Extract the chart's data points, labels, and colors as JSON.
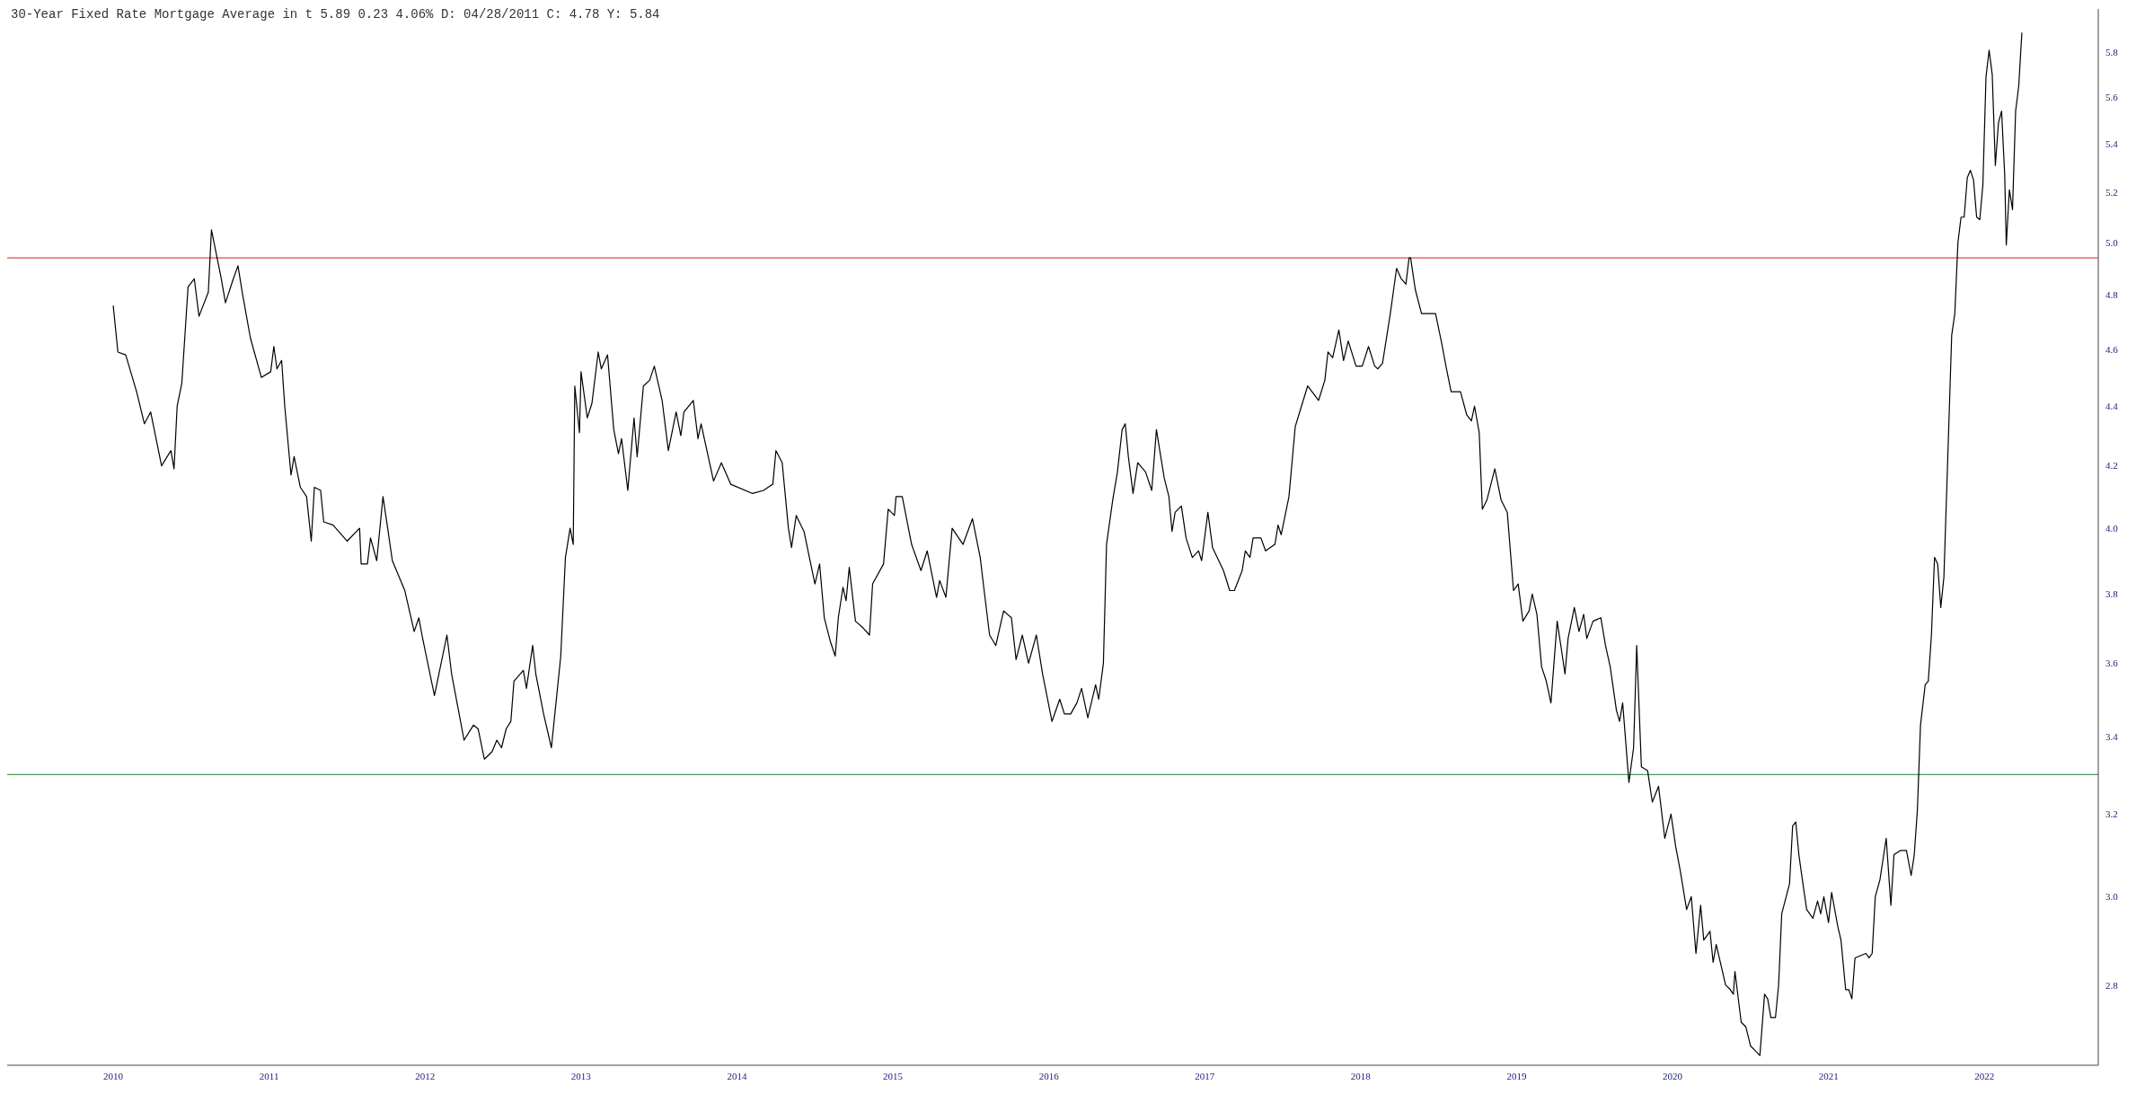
{
  "chart_data": {
    "type": "line",
    "title": "30-Year Fixed Rate Mortgage Average in t 5.89 0.23 4.06% D: 04/28/2011 C: 4.78 Y: 5.84",
    "x": [
      2010.0,
      2010.03,
      2010.08,
      2010.15,
      2010.2,
      2010.24,
      2010.31,
      2010.37,
      2010.39,
      2010.41,
      2010.44,
      2010.48,
      2010.52,
      2010.55,
      2010.61,
      2010.63,
      2010.69,
      2010.72,
      2010.77,
      2010.8,
      2010.83,
      2010.88,
      2010.95,
      2011.01,
      2011.03,
      2011.05,
      2011.08,
      2011.1,
      2011.14,
      2011.16,
      2011.2,
      2011.24,
      2011.27,
      2011.29,
      2011.33,
      2011.35,
      2011.41,
      2011.5,
      2011.58,
      2011.59,
      2011.63,
      2011.65,
      2011.69,
      2011.73,
      2011.76,
      2011.79,
      2011.87,
      2011.93,
      2011.96,
      2011.98,
      2012.06,
      2012.14,
      2012.17,
      2012.25,
      2012.31,
      2012.34,
      2012.38,
      2012.43,
      2012.46,
      2012.49,
      2012.52,
      2012.55,
      2012.57,
      2012.63,
      2012.65,
      2012.69,
      2012.71,
      2012.76,
      2012.81,
      2012.87,
      2012.9,
      2012.93,
      2012.95,
      2012.96,
      2012.99,
      2013.0,
      2013.04,
      2013.07,
      2013.11,
      2013.13,
      2013.17,
      2013.21,
      2013.24,
      2013.26,
      2013.3,
      2013.34,
      2013.36,
      2013.4,
      2013.44,
      2013.47,
      2013.52,
      2013.56,
      2013.61,
      2013.64,
      2013.66,
      2013.72,
      2013.75,
      2013.77,
      2013.85,
      2013.9,
      2013.96,
      2014.1,
      2014.17,
      2014.23,
      2014.25,
      2014.29,
      2014.33,
      2014.35,
      2014.38,
      2014.43,
      2014.46,
      2014.5,
      2014.53,
      2014.56,
      2014.6,
      2014.63,
      2014.65,
      2014.68,
      2014.7,
      2014.72,
      2014.76,
      2014.81,
      2014.85,
      2014.87,
      2014.94,
      2014.97,
      2015.01,
      2015.02,
      2015.06,
      2015.12,
      2015.18,
      2015.22,
      2015.28,
      2015.3,
      2015.34,
      2015.38,
      2015.45,
      2015.51,
      2015.56,
      2015.58,
      2015.62,
      2015.66,
      2015.71,
      2015.76,
      2015.79,
      2015.83,
      2015.87,
      2015.92,
      2015.96,
      2016.02,
      2016.07,
      2016.1,
      2016.14,
      2016.18,
      2016.21,
      2016.25,
      2016.3,
      2016.32,
      2016.35,
      2016.37,
      2016.41,
      2016.44,
      2016.47,
      2016.49,
      2016.51,
      2016.54,
      2016.57,
      2016.62,
      2016.66,
      2016.69,
      2016.74,
      2016.77,
      2016.79,
      2016.81,
      2016.85,
      2016.88,
      2016.92,
      2016.96,
      2016.98,
      2017.02,
      2017.05,
      2017.12,
      2017.16,
      2017.19,
      2017.24,
      2017.26,
      2017.29,
      2017.31,
      2017.36,
      2017.39,
      2017.45,
      2017.47,
      2017.49,
      2017.54,
      2017.58,
      2017.62,
      2017.66,
      2017.73,
      2017.77,
      2017.79,
      2017.82,
      2017.86,
      2017.89,
      2017.92,
      2017.97,
      2018.01,
      2018.05,
      2018.09,
      2018.11,
      2018.14,
      2018.19,
      2018.23,
      2018.26,
      2018.29,
      2018.31,
      2018.32,
      2018.35,
      2018.39,
      2018.48,
      2018.52,
      2018.55,
      2018.58,
      2018.64,
      2018.68,
      2018.71,
      2018.73,
      2018.76,
      2018.78,
      2018.81,
      2018.86,
      2018.9,
      2018.94,
      2018.98,
      2019.01,
      2019.04,
      2019.08,
      2019.1,
      2019.13,
      2019.16,
      2019.19,
      2019.22,
      2019.26,
      2019.29,
      2019.31,
      2019.33,
      2019.37,
      2019.4,
      2019.43,
      2019.45,
      2019.49,
      2019.54,
      2019.57,
      2019.6,
      2019.64,
      2019.66,
      2019.68,
      2019.72,
      2019.75,
      2019.77,
      2019.8,
      2019.84,
      2019.87,
      2019.91,
      2019.95,
      2019.99,
      2020.02,
      2020.05,
      2020.09,
      2020.12,
      2020.15,
      2020.18,
      2020.2,
      2020.24,
      2020.26,
      2020.28,
      2020.34,
      2020.37,
      2020.39,
      2020.4,
      2020.44,
      2020.47,
      2020.5,
      2020.53,
      2020.56,
      2020.59,
      2020.61,
      2020.63,
      2020.66,
      2020.68,
      2020.7,
      2020.75,
      2020.77,
      2020.79,
      2020.81,
      2020.84,
      2020.86,
      2020.9,
      2020.93,
      2020.95,
      2020.97,
      2021.0,
      2021.02,
      2021.06,
      2021.08,
      2021.11,
      2021.13,
      2021.15,
      2021.17,
      2021.24,
      2021.26,
      2021.28,
      2021.3,
      2021.33,
      2021.37,
      2021.4,
      2021.42,
      2021.46,
      2021.5,
      2021.53,
      2021.55,
      2021.57,
      2021.59,
      2021.62,
      2021.64,
      2021.66,
      2021.68,
      2021.7,
      2021.72,
      2021.74,
      2021.76,
      2021.79,
      2021.81,
      2021.83,
      2021.85,
      2021.87,
      2021.89,
      2021.91,
      2021.93,
      2021.95,
      2021.97,
      2021.99,
      2022.01,
      2022.03,
      2022.05,
      2022.07,
      2022.09,
      2022.11,
      2022.13,
      2022.14,
      2022.16,
      2022.18,
      2022.2,
      2022.22,
      2022.24
    ],
    "values": [
      4.76,
      4.59,
      4.58,
      4.45,
      4.34,
      4.38,
      4.2,
      4.25,
      4.19,
      4.4,
      4.48,
      4.83,
      4.86,
      4.72,
      4.81,
      5.05,
      4.87,
      4.77,
      4.86,
      4.91,
      4.8,
      4.64,
      4.5,
      4.52,
      4.61,
      4.53,
      4.56,
      4.4,
      4.17,
      4.23,
      4.13,
      4.1,
      3.96,
      4.13,
      4.12,
      4.02,
      4.01,
      3.96,
      4.0,
      3.89,
      3.89,
      3.97,
      3.9,
      4.1,
      4.0,
      3.9,
      3.81,
      3.69,
      3.73,
      3.68,
      3.51,
      3.68,
      3.57,
      3.39,
      3.43,
      3.42,
      3.34,
      3.36,
      3.39,
      3.37,
      3.42,
      3.44,
      3.55,
      3.58,
      3.53,
      3.65,
      3.57,
      3.46,
      3.37,
      3.62,
      3.91,
      4.0,
      3.95,
      4.47,
      4.31,
      4.52,
      4.36,
      4.41,
      4.59,
      4.53,
      4.58,
      4.32,
      4.24,
      4.29,
      4.12,
      4.36,
      4.23,
      4.47,
      4.49,
      4.54,
      4.42,
      4.25,
      4.38,
      4.3,
      4.38,
      4.42,
      4.29,
      4.34,
      4.15,
      4.21,
      4.14,
      4.11,
      4.12,
      4.14,
      4.25,
      4.21,
      4.0,
      3.94,
      4.04,
      3.99,
      3.92,
      3.83,
      3.89,
      3.73,
      3.66,
      3.62,
      3.73,
      3.82,
      3.78,
      3.88,
      3.72,
      3.7,
      3.68,
      3.83,
      3.89,
      4.06,
      4.04,
      4.1,
      4.1,
      3.95,
      3.87,
      3.93,
      3.79,
      3.84,
      3.79,
      4.0,
      3.95,
      4.03,
      3.91,
      3.83,
      3.68,
      3.65,
      3.75,
      3.73,
      3.61,
      3.68,
      3.6,
      3.68,
      3.57,
      3.44,
      3.5,
      3.46,
      3.46,
      3.49,
      3.53,
      3.45,
      3.54,
      3.5,
      3.6,
      3.95,
      4.09,
      4.18,
      4.32,
      4.34,
      4.23,
      4.11,
      4.21,
      4.18,
      4.12,
      4.32,
      4.16,
      4.1,
      3.99,
      4.05,
      4.07,
      3.97,
      3.91,
      3.93,
      3.9,
      4.05,
      3.94,
      3.87,
      3.81,
      3.81,
      3.87,
      3.93,
      3.91,
      3.97,
      3.97,
      3.93,
      3.95,
      4.01,
      3.98,
      4.1,
      4.33,
      4.4,
      4.47,
      4.42,
      4.49,
      4.59,
      4.57,
      4.67,
      4.56,
      4.63,
      4.54,
      4.54,
      4.61,
      4.54,
      4.53,
      4.55,
      4.73,
      4.9,
      4.86,
      4.84,
      4.94,
      4.94,
      4.82,
      4.73,
      4.73,
      4.62,
      4.53,
      4.45,
      4.45,
      4.37,
      4.35,
      4.4,
      4.31,
      4.06,
      4.09,
      4.19,
      4.09,
      4.05,
      3.81,
      3.83,
      3.72,
      3.75,
      3.8,
      3.74,
      3.59,
      3.55,
      3.49,
      3.72,
      3.63,
      3.57,
      3.67,
      3.76,
      3.69,
      3.74,
      3.67,
      3.72,
      3.73,
      3.65,
      3.59,
      3.47,
      3.44,
      3.49,
      3.28,
      3.37,
      3.65,
      3.32,
      3.31,
      3.23,
      3.27,
      3.14,
      3.2,
      3.12,
      3.06,
      2.97,
      3.0,
      2.87,
      2.98,
      2.9,
      2.92,
      2.85,
      2.89,
      2.8,
      2.79,
      2.78,
      2.83,
      2.72,
      2.71,
      2.67,
      2.66,
      2.65,
      2.78,
      2.77,
      2.73,
      2.73,
      2.8,
      2.96,
      3.03,
      3.17,
      3.18,
      3.1,
      3.02,
      2.97,
      2.95,
      2.99,
      2.96,
      3.0,
      2.94,
      3.01,
      2.93,
      2.9,
      2.79,
      2.79,
      2.77,
      2.86,
      2.87,
      2.86,
      2.87,
      3.0,
      3.04,
      3.14,
      2.98,
      3.1,
      3.11,
      3.11,
      3.05,
      3.1,
      3.21,
      3.43,
      3.54,
      3.55,
      3.68,
      3.91,
      3.89,
      3.76,
      3.85,
      4.15,
      4.65,
      4.73,
      5.0,
      5.1,
      5.1,
      5.26,
      5.29,
      5.25,
      5.1,
      5.09,
      5.23,
      5.69,
      5.81,
      5.7,
      5.31,
      5.49,
      5.54,
      5.27,
      4.99,
      5.21,
      5.13,
      5.54,
      5.65,
      5.89
    ],
    "color": "#000000",
    "xlim": [
      2009.32,
      2022.73
    ],
    "xticks": [
      2010,
      2011,
      2012,
      2013,
      2014,
      2015,
      2016,
      2017,
      2018,
      2019,
      2020,
      2021,
      2022
    ],
    "ylim": [
      2.63,
      6.0
    ],
    "yticks": [
      2.8,
      {
        "value": 3,
        "label": "3.0"
      },
      3.2,
      3.4,
      3.6,
      3.8,
      {
        "value": 4,
        "label": "4.0"
      },
      4.2,
      4.4,
      4.6,
      4.8,
      {
        "value": 5,
        "label": "5.0"
      },
      5.2,
      5.4,
      5.6,
      5.8
    ],
    "log": "y",
    "ref_lines": [
      {
        "axis": "y",
        "value": 4.94,
        "color": "#e04848"
      },
      {
        "axis": "y",
        "value": 3.3,
        "color": "#4f9a4f"
      }
    ]
  }
}
